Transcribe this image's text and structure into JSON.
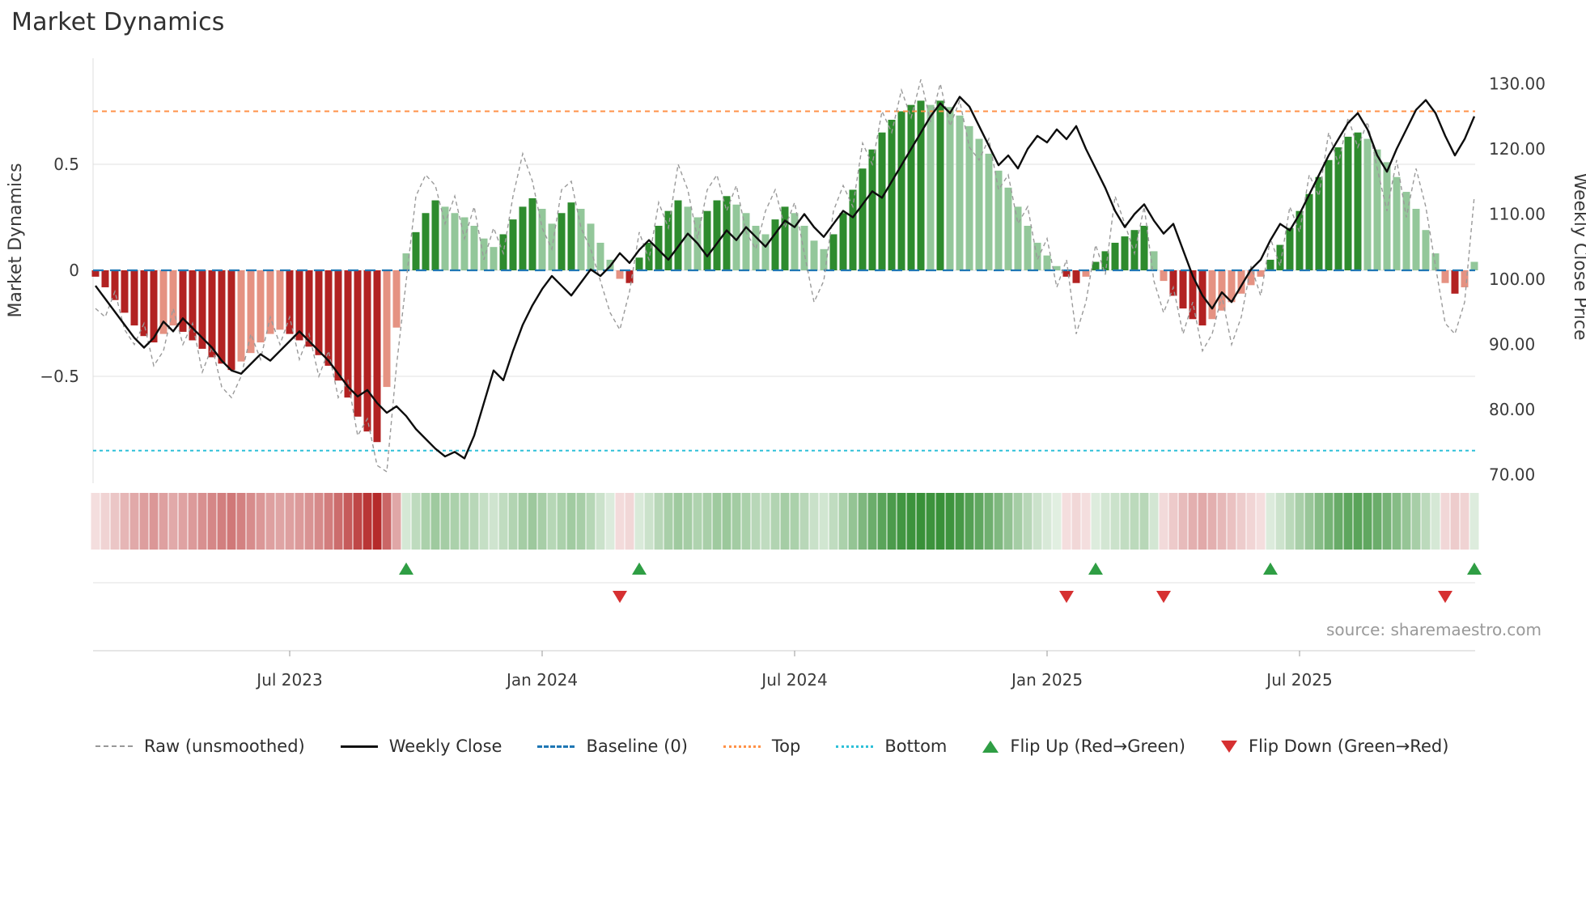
{
  "title": "Market Dynamics",
  "source": "source: sharemaestro.com",
  "axes": {
    "left_label": "Market Dynamics",
    "right_label": "Weekly Close Price",
    "left_ticks": [
      {
        "v": -0.5,
        "label": "−0.5"
      },
      {
        "v": 0,
        "label": "0"
      },
      {
        "v": 0.5,
        "label": "0.5"
      }
    ],
    "right_ticks": [
      {
        "v": 70,
        "label": "70.00"
      },
      {
        "v": 80,
        "label": "80.00"
      },
      {
        "v": 90,
        "label": "90.00"
      },
      {
        "v": 100,
        "label": "100.00"
      },
      {
        "v": 110,
        "label": "110.00"
      },
      {
        "v": 120,
        "label": "120.00"
      },
      {
        "v": 130,
        "label": "130.00"
      }
    ],
    "x_ticks": [
      {
        "week": 20,
        "label": "Jul 2023"
      },
      {
        "week": 46,
        "label": "Jan 2024"
      },
      {
        "week": 72,
        "label": "Jul 2024"
      },
      {
        "week": 98,
        "label": "Jan 2025"
      },
      {
        "week": 124,
        "label": "Jul 2025"
      }
    ]
  },
  "colors": {
    "bar_dark_red": "#b22222",
    "bar_light_red": "#e59282",
    "bar_dark_green": "#2e8b2e",
    "bar_light_green": "#93c79a",
    "price_line": "#0d0d0d",
    "raw_line": "#9a9a9a",
    "baseline": "#1f77b4",
    "top_line": "#ff9248",
    "bottom_line": "#2ec0d8",
    "flip_up": "#2f9e44",
    "flip_down": "#d63031",
    "grid": "#e8e8e8",
    "spine": "#cccccc",
    "axis_text": "#3a3a3a",
    "source_text": "#999999"
  },
  "legend": [
    {
      "label": "Raw (unsmoothed)",
      "swatch": "raw"
    },
    {
      "label": "Weekly Close",
      "swatch": "close"
    },
    {
      "label": "Baseline (0)",
      "swatch": "baseline"
    },
    {
      "label": "Top",
      "swatch": "top"
    },
    {
      "label": "Bottom",
      "swatch": "bottom"
    },
    {
      "label": "Flip Up (Red→Green)",
      "swatch": "flip-up"
    },
    {
      "label": "Flip Down (Green→Red)",
      "swatch": "flip-down"
    }
  ],
  "chart_data": {
    "type": "bar",
    "subtype": "combo-oscillator-price",
    "freq": "weekly",
    "start_date": "2023-02-13",
    "end_date": "2025-11-03",
    "left_ylim": [
      -1.0,
      1.0
    ],
    "right_ylim": [
      68,
      132
    ],
    "thresholds": {
      "baseline": 0,
      "top": 0.75,
      "bottom": -0.85
    },
    "flip_up_weeks": [
      32,
      56,
      103,
      121,
      142
    ],
    "flip_down_weeks": [
      54,
      100,
      110,
      139
    ],
    "series": [
      {
        "name": "Oscillator (smoothed bars)",
        "type": "bar",
        "axis": "left",
        "values": [
          -0.03,
          -0.08,
          -0.14,
          -0.2,
          -0.26,
          -0.31,
          -0.34,
          -0.3,
          -0.26,
          -0.29,
          -0.33,
          -0.37,
          -0.41,
          -0.44,
          -0.47,
          -0.43,
          -0.39,
          -0.34,
          -0.3,
          -0.28,
          -0.3,
          -0.33,
          -0.36,
          -0.4,
          -0.45,
          -0.52,
          -0.6,
          -0.69,
          -0.76,
          -0.81,
          -0.55,
          -0.27,
          0.08,
          0.18,
          0.27,
          0.33,
          0.3,
          0.27,
          0.25,
          0.21,
          0.15,
          0.11,
          0.17,
          0.24,
          0.3,
          0.34,
          0.29,
          0.22,
          0.27,
          0.32,
          0.29,
          0.22,
          0.13,
          0.05,
          -0.04,
          -0.06,
          0.06,
          0.13,
          0.21,
          0.28,
          0.33,
          0.3,
          0.25,
          0.28,
          0.33,
          0.35,
          0.31,
          0.27,
          0.21,
          0.17,
          0.24,
          0.3,
          0.27,
          0.21,
          0.14,
          0.1,
          0.17,
          0.27,
          0.38,
          0.48,
          0.57,
          0.65,
          0.71,
          0.75,
          0.78,
          0.8,
          0.78,
          0.8,
          0.77,
          0.73,
          0.68,
          0.62,
          0.55,
          0.47,
          0.39,
          0.3,
          0.21,
          0.13,
          0.07,
          0.02,
          -0.03,
          -0.06,
          -0.03,
          0.04,
          0.09,
          0.13,
          0.16,
          0.19,
          0.21,
          0.09,
          -0.05,
          -0.12,
          -0.18,
          -0.23,
          -0.26,
          -0.23,
          -0.19,
          -0.15,
          -0.11,
          -0.07,
          -0.03,
          0.05,
          0.12,
          0.2,
          0.28,
          0.36,
          0.44,
          0.52,
          0.58,
          0.63,
          0.65,
          0.62,
          0.57,
          0.51,
          0.44,
          0.37,
          0.29,
          0.19,
          0.08,
          -0.06,
          -0.11,
          -0.08,
          0.04
        ]
      },
      {
        "name": "Raw (unsmoothed)",
        "type": "line",
        "axis": "left",
        "values": [
          -0.18,
          -0.22,
          -0.1,
          -0.28,
          -0.35,
          -0.25,
          -0.45,
          -0.38,
          -0.18,
          -0.35,
          -0.25,
          -0.48,
          -0.36,
          -0.55,
          -0.6,
          -0.5,
          -0.3,
          -0.42,
          -0.22,
          -0.35,
          -0.22,
          -0.42,
          -0.3,
          -0.5,
          -0.38,
          -0.6,
          -0.52,
          -0.78,
          -0.7,
          -0.92,
          -0.95,
          -0.45,
          -0.05,
          0.35,
          0.45,
          0.4,
          0.22,
          0.35,
          0.15,
          0.3,
          0.05,
          0.2,
          0.08,
          0.35,
          0.55,
          0.42,
          0.2,
          0.1,
          0.38,
          0.42,
          0.2,
          0.1,
          -0.05,
          -0.2,
          -0.28,
          -0.1,
          0.18,
          0.05,
          0.32,
          0.2,
          0.5,
          0.38,
          0.15,
          0.38,
          0.45,
          0.28,
          0.4,
          0.18,
          0.1,
          0.28,
          0.38,
          0.2,
          0.32,
          0.08,
          -0.15,
          -0.05,
          0.28,
          0.4,
          0.3,
          0.6,
          0.5,
          0.75,
          0.65,
          0.85,
          0.72,
          0.9,
          0.7,
          0.88,
          0.68,
          0.8,
          0.58,
          0.52,
          0.62,
          0.38,
          0.45,
          0.22,
          0.3,
          0.05,
          0.15,
          -0.08,
          0.05,
          -0.3,
          -0.15,
          0.12,
          -0.02,
          0.35,
          0.22,
          0.08,
          0.3,
          -0.05,
          -0.2,
          -0.08,
          -0.3,
          -0.15,
          -0.38,
          -0.3,
          -0.12,
          -0.35,
          -0.22,
          0.02,
          -0.12,
          0.15,
          0.02,
          0.3,
          0.18,
          0.45,
          0.35,
          0.65,
          0.5,
          0.72,
          0.58,
          0.7,
          0.48,
          0.28,
          0.52,
          0.25,
          0.48,
          0.3,
          0.02,
          -0.25,
          -0.3,
          -0.15,
          0.35
        ]
      },
      {
        "name": "Weekly Close",
        "type": "line",
        "axis": "right",
        "values": [
          99,
          97,
          95,
          93,
          91,
          89.5,
          91,
          93.5,
          92,
          94,
          92.5,
          91,
          89.5,
          87.5,
          86,
          85.5,
          87,
          88.5,
          87.5,
          89,
          90.5,
          92,
          90.5,
          89,
          87.5,
          85.5,
          83.5,
          82,
          83,
          81,
          79.5,
          80.5,
          79,
          77,
          75.5,
          74,
          72.8,
          73.5,
          72.5,
          76,
          81,
          86,
          84.5,
          89,
          93,
          96,
          98.5,
          100.5,
          99,
          97.5,
          99.5,
          101.5,
          100.5,
          102,
          104,
          102.5,
          104.5,
          106,
          104.5,
          103,
          105,
          107,
          105.5,
          103.5,
          105.5,
          107.5,
          106,
          108,
          106.5,
          105,
          107,
          109,
          108,
          110,
          108,
          106.5,
          108.5,
          110.5,
          109.5,
          111.5,
          113.5,
          112.5,
          115,
          117.5,
          120,
          122.5,
          125,
          127,
          125.5,
          128,
          126.5,
          123.5,
          120.5,
          117.5,
          119,
          117,
          120,
          122,
          121,
          123,
          121.5,
          123.5,
          120,
          117,
          114,
          110.5,
          108,
          110,
          111.5,
          109,
          107,
          108.5,
          104.5,
          100.5,
          97.5,
          95.5,
          98,
          96.5,
          99,
          101.5,
          103,
          106,
          108.5,
          107.5,
          110,
          113,
          116,
          119,
          121.5,
          124,
          125.5,
          123,
          119,
          116.5,
          120,
          123,
          126,
          127.5,
          125.5,
          122,
          119,
          121.5,
          125
        ]
      }
    ]
  }
}
